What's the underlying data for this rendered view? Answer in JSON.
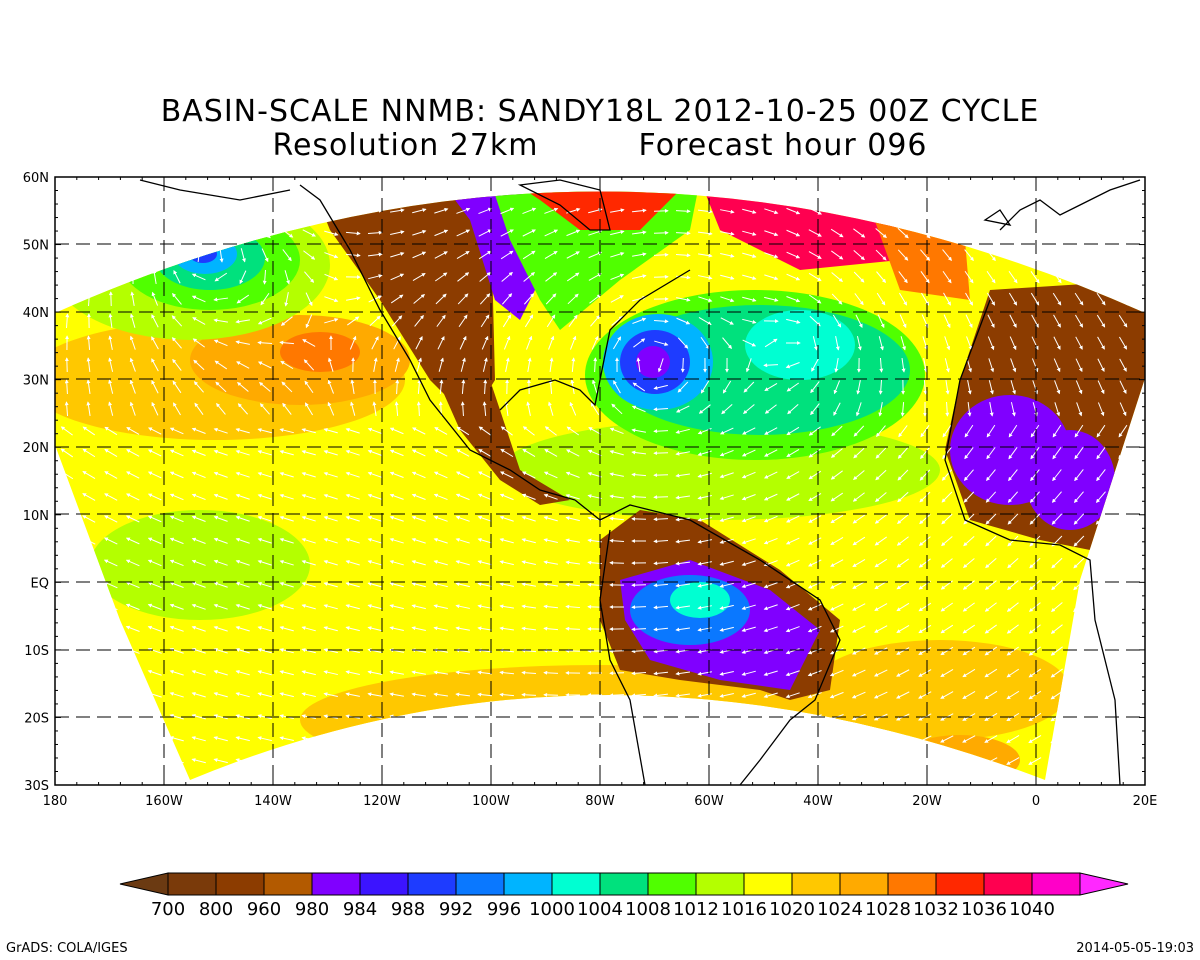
{
  "title_line1": "BASIN-SCALE NNMB: SANDY18L 2012-10-25 00Z CYCLE",
  "title_line2_left": "Resolution 27km",
  "title_line2_right": "Forecast hour 096",
  "lat_labels": [
    "60N",
    "50N",
    "40N",
    "30N",
    "20N",
    "10N",
    "EQ",
    "10S",
    "20S",
    "30S"
  ],
  "lon_labels": [
    "180",
    "160W",
    "140W",
    "120W",
    "100W",
    "80W",
    "60W",
    "40W",
    "20W",
    "0",
    "20E"
  ],
  "colorbar": {
    "labels": [
      "700",
      "800",
      "960",
      "980",
      "984",
      "988",
      "992",
      "996",
      "1000",
      "1004",
      "1008",
      "1012",
      "1016",
      "1020",
      "1024",
      "1028",
      "1032",
      "1036",
      "1040"
    ],
    "colors": [
      "#7a3a0a",
      "#8c3c00",
      "#b35a00",
      "#8000ff",
      "#3c14ff",
      "#1e3cff",
      "#0a78ff",
      "#00b4ff",
      "#00ffd2",
      "#00e17d",
      "#50ff00",
      "#b4ff00",
      "#ffff00",
      "#ffc800",
      "#ffaa00",
      "#ff7800",
      "#ff2800",
      "#ff0050",
      "#ff00c8"
    ],
    "low_arrow_color": "#6b3a12",
    "high_arrow_color": "#ff28ff"
  },
  "footer_left": "GrADS: COLA/IGES",
  "footer_right": "2014-05-05-19:03"
}
